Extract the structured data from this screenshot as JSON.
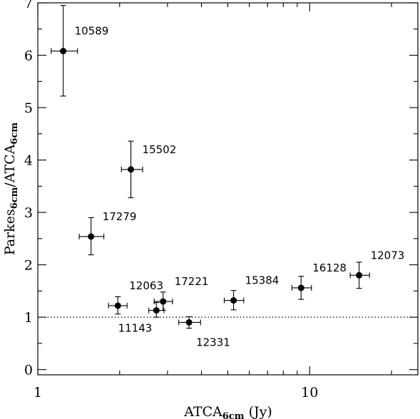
{
  "chart_data": {
    "type": "scatter",
    "title": "",
    "xlabel": {
      "main": "ATCA",
      "sub": "6cm",
      "suffix": " (Jy)"
    },
    "ylabel": {
      "main1": "Parkes",
      "sub1": "6cm",
      "sep": "/ATCA",
      "sub2": "6cm"
    },
    "x_scale": "log",
    "xlim": [
      1,
      25
    ],
    "ylim": [
      -0.1,
      7
    ],
    "x_ticks": [
      {
        "value": 1,
        "label": "1"
      },
      {
        "value": 10,
        "label": "10"
      }
    ],
    "y_ticks": [
      {
        "value": 0,
        "label": "0"
      },
      {
        "value": 1,
        "label": "1"
      },
      {
        "value": 2,
        "label": "2"
      },
      {
        "value": 3,
        "label": "3"
      },
      {
        "value": 4,
        "label": "4"
      },
      {
        "value": 5,
        "label": "5"
      },
      {
        "value": 6,
        "label": "6"
      },
      {
        "value": 7,
        "label": "7"
      }
    ],
    "reference_line": {
      "y": 1,
      "style": "dotted"
    },
    "points": [
      {
        "label": "10589",
        "x": 1.24,
        "xerr": [
          1.12,
          1.4
        ],
        "y": 6.08,
        "yerr": [
          5.22,
          6.95
        ],
        "label_pos": "upper-right"
      },
      {
        "label": "15502",
        "x": 2.2,
        "xerr": [
          2.03,
          2.43
        ],
        "y": 3.82,
        "yerr": [
          3.28,
          4.36
        ],
        "label_pos": "upper-right"
      },
      {
        "label": "17279",
        "x": 1.57,
        "xerr": [
          1.42,
          1.75
        ],
        "y": 2.54,
        "yerr": [
          2.19,
          2.9
        ],
        "label_pos": "upper-right"
      },
      {
        "label": "12063",
        "x": 1.97,
        "xerr": [
          1.82,
          2.13
        ],
        "y": 1.22,
        "yerr": [
          1.06,
          1.39
        ],
        "label_pos": "upper-right"
      },
      {
        "label": "11143",
        "x": 2.73,
        "xerr": [
          2.56,
          2.91
        ],
        "y": 1.13,
        "yerr": [
          1.0,
          1.28
        ],
        "label_pos": "lower-left"
      },
      {
        "label": "17221",
        "x": 2.89,
        "xerr": [
          2.68,
          3.13
        ],
        "y": 1.3,
        "yerr": [
          1.13,
          1.48
        ],
        "label_pos": "upper-right"
      },
      {
        "label": "12331",
        "x": 3.6,
        "xerr": [
          3.3,
          3.97
        ],
        "y": 0.9,
        "yerr": [
          0.79,
          1.01
        ],
        "label_pos": "lower-right"
      },
      {
        "label": "15384",
        "x": 5.25,
        "xerr": [
          4.85,
          5.72
        ],
        "y": 1.32,
        "yerr": [
          1.14,
          1.51
        ],
        "label_pos": "upper-right"
      },
      {
        "label": "16128",
        "x": 9.3,
        "xerr": [
          8.6,
          10.15
        ],
        "y": 1.56,
        "yerr": [
          1.34,
          1.78
        ],
        "label_pos": "upper-right"
      },
      {
        "label": "12073",
        "x": 15.2,
        "xerr": [
          14.1,
          16.6
        ],
        "y": 1.8,
        "yerr": [
          1.55,
          2.05
        ],
        "label_pos": "upper-right"
      }
    ]
  }
}
